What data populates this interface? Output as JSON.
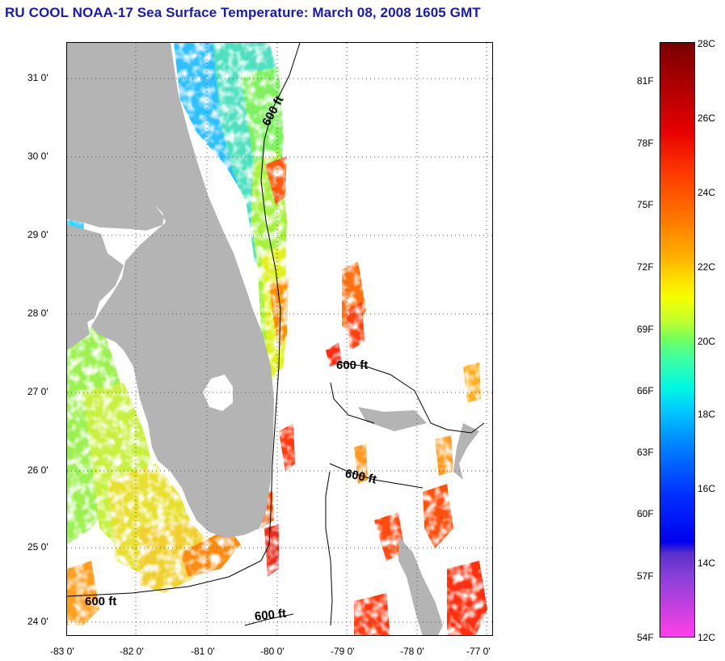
{
  "title": "RU COOL  NOAA-17  Sea Surface Temperature:  March 08, 2008 1605 GMT",
  "map": {
    "lat_labels": [
      "31 0'",
      "30 0'",
      "29 0'",
      "28 0'",
      "27 0'",
      "26 0'",
      "25 0'",
      "24 0'"
    ],
    "lon_labels": [
      "-83 0'",
      "-82 0'",
      "-81 0'",
      "-80 0'",
      "-79 0'",
      "-78 0'",
      "-77 0'"
    ],
    "contour_labels": [
      "600 ft",
      "600 ft",
      "600 ft",
      "600 ft",
      "600 ft"
    ],
    "land_color": "#b4b4b4",
    "nodata_color": "#ffffff"
  },
  "colorbar": {
    "celsius_labels": [
      "28C",
      "26C",
      "24C",
      "22C",
      "20C",
      "18C",
      "16C",
      "14C",
      "12C"
    ],
    "fahrenheit_labels": [
      "81F",
      "78F",
      "75F",
      "72F",
      "69F",
      "66F",
      "63F",
      "60F",
      "57F",
      "54F"
    ],
    "range_c": [
      12,
      28
    ]
  }
}
